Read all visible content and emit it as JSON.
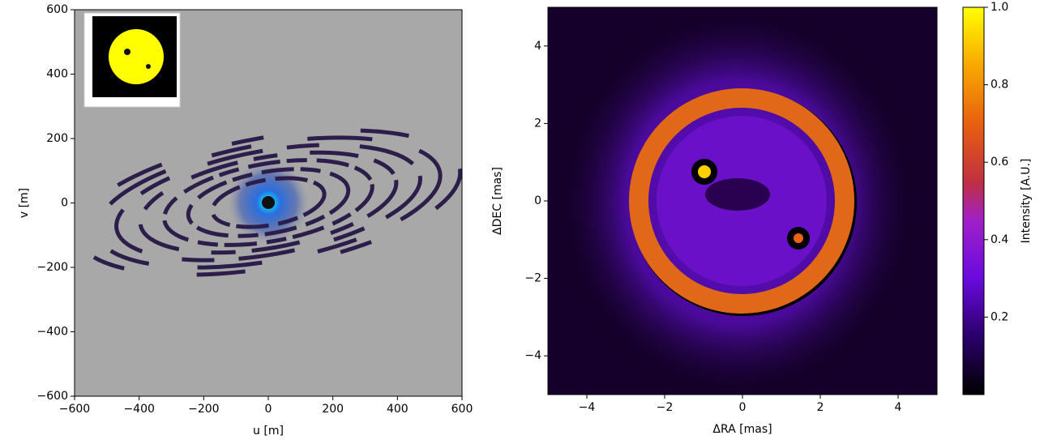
{
  "chart_data": [
    {
      "type": "scatter",
      "xlabel": "u [m]",
      "ylabel": "v [m]",
      "xlim": [
        -600,
        600
      ],
      "ylim": [
        -600,
        600
      ],
      "xticks": [
        {
          "value": -600,
          "label": "−600"
        },
        {
          "value": -400,
          "label": "−400"
        },
        {
          "value": -200,
          "label": "−200"
        },
        0,
        200,
        400,
        600
      ],
      "yticks": [
        {
          "value": -600,
          "label": "−600"
        },
        {
          "value": -400,
          "label": "−400"
        },
        {
          "value": -200,
          "label": "−200"
        },
        0,
        200,
        400,
        600
      ]
    },
    {
      "type": "heatmap",
      "xlabel": "ΔRA [mas]",
      "ylabel": "ΔDEC [mas]",
      "xlim": [
        -5,
        5
      ],
      "ylim": [
        -5,
        5
      ],
      "xticks": [
        {
          "value": -4,
          "label": "−4"
        },
        {
          "value": -2,
          "label": "−2"
        },
        0,
        2,
        4
      ],
      "yticks": [
        {
          "value": -4,
          "label": "−4"
        },
        {
          "value": -2,
          "label": "−2"
        },
        0,
        2,
        4
      ],
      "colorbar_label": "Intensity [A.U.]",
      "clim": [
        0,
        1
      ],
      "cticks": [
        0.2,
        0.4,
        0.6,
        0.8,
        {
          "value": 1,
          "label": "1.0"
        }
      ]
    }
  ]
}
